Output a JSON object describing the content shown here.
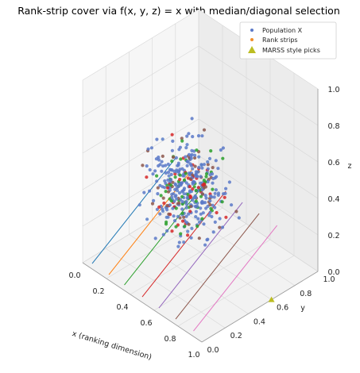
{
  "chart_data": {
    "type": "scatter",
    "projection": "3d",
    "title": "Rank-strip cover via f(x, y, z) = x with median/diagonal selection",
    "xlabel": "x (ranking dimension)",
    "ylabel": "y",
    "zlabel": "z",
    "xlim": [
      0.0,
      1.0
    ],
    "ylim": [
      0.0,
      1.0
    ],
    "zlim": [
      0.0,
      1.0
    ],
    "xticks": [
      "0.0",
      "0.2",
      "0.4",
      "0.6",
      "0.8",
      "1.0"
    ],
    "yticks": [
      "0.0",
      "0.2",
      "0.4",
      "0.6",
      "0.8",
      "1.0"
    ],
    "zticks": [
      "0.0",
      "0.2",
      "0.4",
      "0.6",
      "0.8",
      "1.0"
    ],
    "grid": true,
    "legend_position": "top-right",
    "series": [
      {
        "name": "Population X",
        "kind": "scatter",
        "color": "#5b79c8",
        "n_points": 420
      },
      {
        "name": "Rank strips",
        "kind": "scatter",
        "color": "#f28e2b",
        "strip_colors": [
          "#1f77b4",
          "#ff7f0e",
          "#2ca02c",
          "#d62728",
          "#9467bd",
          "#8c564b",
          "#e377c2"
        ],
        "point_colors": [
          "#2ca02c",
          "#d62728",
          "#8c564b",
          "#5a7fc8"
        ]
      },
      {
        "name": "MARSS style picks",
        "kind": "marker",
        "marker": "triangle",
        "color": "#bcbd22",
        "points": [
          {
            "x": 1.0,
            "y": 0.6,
            "z": 0.0
          }
        ]
      }
    ],
    "strip_lines": [
      {
        "x": 0.08,
        "color": "#1f77b4"
      },
      {
        "x": 0.22,
        "color": "#ff7f0e"
      },
      {
        "x": 0.35,
        "color": "#2ca02c"
      },
      {
        "x": 0.5,
        "color": "#d62728"
      },
      {
        "x": 0.64,
        "color": "#9467bd"
      },
      {
        "x": 0.78,
        "color": "#8c564b"
      },
      {
        "x": 0.93,
        "color": "#e377c2"
      }
    ]
  }
}
